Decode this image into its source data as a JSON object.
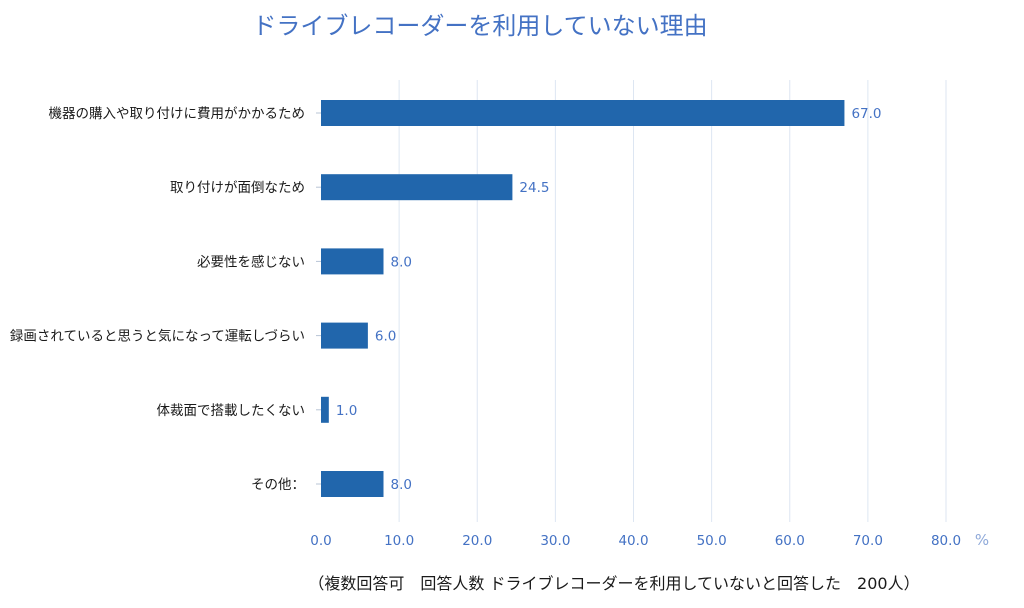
{
  "chart_data": {
    "type": "bar",
    "orientation": "horizontal",
    "title": "ドライブレコーダーを利用していない理由",
    "categories": [
      "機器の購入や取り付けに費用がかかるため",
      "取り付けが面倒なため",
      "必要性を感じない",
      "録画されていると思うと気になって運転しづらい",
      "体裁面で搭載したくない",
      "その他："
    ],
    "values": [
      67.0,
      24.5,
      8.0,
      6.0,
      1.0,
      8.0
    ],
    "value_labels": [
      "67.0",
      "24.5",
      "8.0",
      "6.0",
      "1.0",
      "8.0"
    ],
    "x_ticks": [
      "0.0",
      "10.0",
      "20.0",
      "30.0",
      "40.0",
      "50.0",
      "60.0",
      "70.0",
      "80.0"
    ],
    "x_unit": "%",
    "xlim": [
      0,
      80
    ],
    "grid": true,
    "bar_color": "#2166ac",
    "footnote": "（複数回答可　回答人数 ドライブレコーダーを利用していないと回答した　200人）"
  }
}
